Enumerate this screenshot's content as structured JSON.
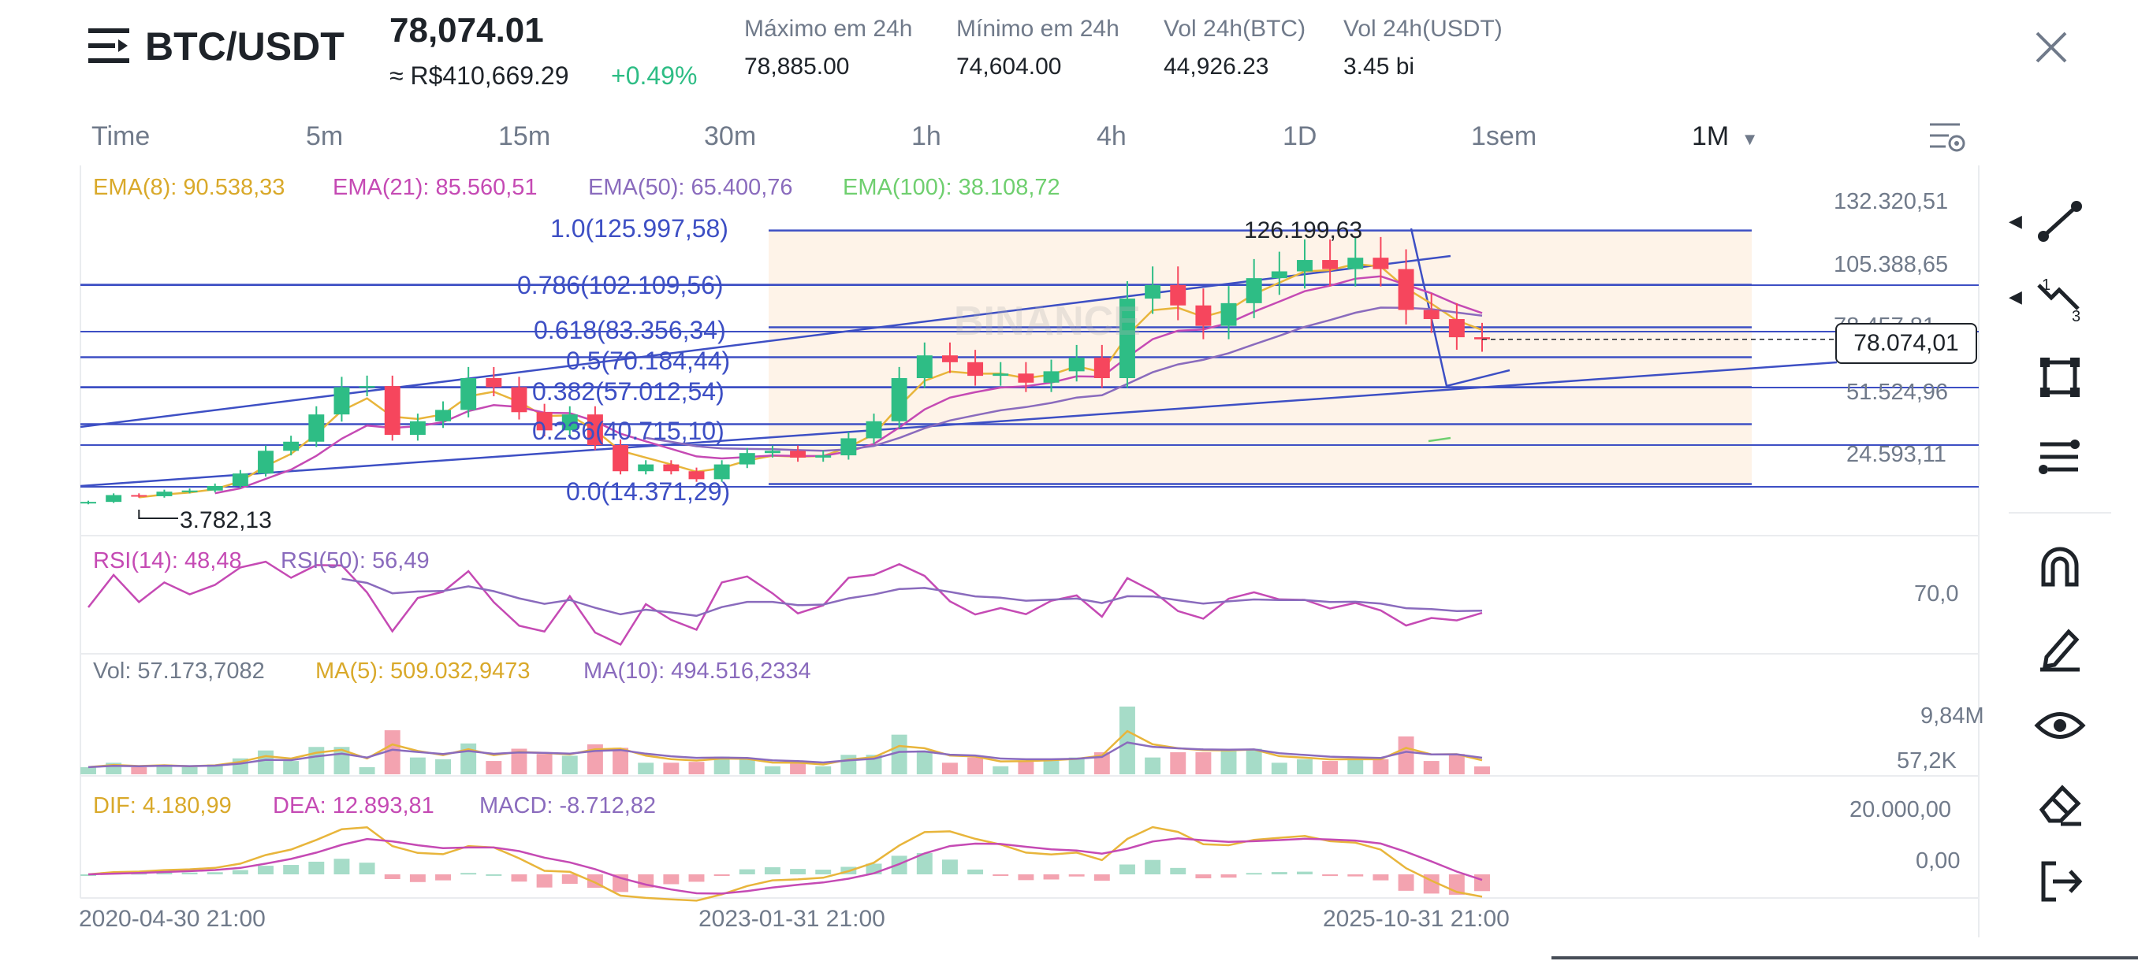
{
  "header": {
    "pair": "BTC/USDT",
    "price": "78,074.01",
    "fiat_price": "≈ R$410,669.29",
    "change": "+0.49%",
    "stats": [
      {
        "label": "Máximo em 24h",
        "value": "78,885.00"
      },
      {
        "label": "Mínimo em 24h",
        "value": "74,604.00"
      },
      {
        "label": "Vol 24h(BTC)",
        "value": "44,926.23"
      },
      {
        "label": "Vol 24h(USDT)",
        "value": "3.45 bi"
      }
    ]
  },
  "timeframes": [
    "Time",
    "5m",
    "15m",
    "30m",
    "1h",
    "4h",
    "1D",
    "1sem"
  ],
  "selected_timeframe": "1M",
  "indicators": {
    "ema": [
      "EMA(8): 90.538,33",
      "EMA(21): 85.560,51",
      "EMA(50): 65.400,76",
      "EMA(100): 38.108,72"
    ],
    "rsi": [
      "RSI(14): 48,48",
      "RSI(50): 56,49"
    ],
    "vol": [
      "Vol: 57.173,7082",
      "MA(5): 509.032,9473",
      "MA(10): 494.516,2334"
    ],
    "macd": [
      "DIF: 4.180,99",
      "DEA: 12.893,81",
      "MACD: -8.712,82"
    ]
  },
  "fib_levels": [
    {
      "label": "1.0(125.997,58)",
      "value": 125997.58
    },
    {
      "label": "0.786(102.109,56)",
      "value": 102109.56
    },
    {
      "label": "0.618(83.356,34)",
      "value": 83356.34
    },
    {
      "label": "0.5(70.184,44)",
      "value": 70184.44
    },
    {
      "label": "0.382(57.012,54)",
      "value": 57012.54
    },
    {
      "label": "0.236(40.715,10)",
      "value": 40715.1
    },
    {
      "label": "0.0(14.371,29)",
      "value": 14371.29
    }
  ],
  "annotations": {
    "high": "126.199,63",
    "low": "3.782,13",
    "watermark": "BINANCE"
  },
  "price_axis": {
    "ticks": [
      "132.320,51",
      "105.388,65",
      "78.457,81",
      "51.524,96",
      "24.593,11"
    ],
    "current": "78.074,01"
  },
  "rsi_axis": [
    "70,0"
  ],
  "vol_axis": [
    "9,84M",
    "57,2K"
  ],
  "macd_axis": [
    "20.000,00",
    "0,00"
  ],
  "x_axis": [
    "2020-04-30 21:00",
    "2023-01-31 21:00",
    "2025-10-31 21:00"
  ],
  "toolbar": [
    "trendline-icon",
    "fib-tool-icon",
    "shape-icon",
    "indicator-icon",
    "magnet-icon",
    "pencil-icon",
    "eye-icon",
    "eraser-icon",
    "exit-icon"
  ],
  "colors": {
    "up": "#2ebd85",
    "down": "#f6465d",
    "fib": "#3d4fc4",
    "ema8": "#e8b53b",
    "ema21": "#c54ab4",
    "ema50": "#8a6bbd",
    "ema100": "#6fcf6f"
  },
  "chart_data": {
    "type": "candlestick",
    "interval": "1M",
    "approx_close": [
      6500,
      9500,
      9000,
      11000,
      11500,
      13500,
      19000,
      29000,
      33000,
      45000,
      57000,
      57500,
      36000,
      42000,
      47000,
      61000,
      57000,
      46000,
      38000,
      45000,
      31500,
      20000,
      23000,
      20000,
      16500,
      23000,
      28000,
      29000,
      26000,
      27000,
      34500,
      42000,
      61000,
      71000,
      68000,
      62000,
      63000,
      59000,
      64000,
      70000,
      61000,
      96000,
      102000,
      93000,
      84000,
      94000,
      105000,
      108000,
      113000,
      109000,
      114000,
      109000,
      91000,
      87000,
      79000,
      78074
    ]
  }
}
